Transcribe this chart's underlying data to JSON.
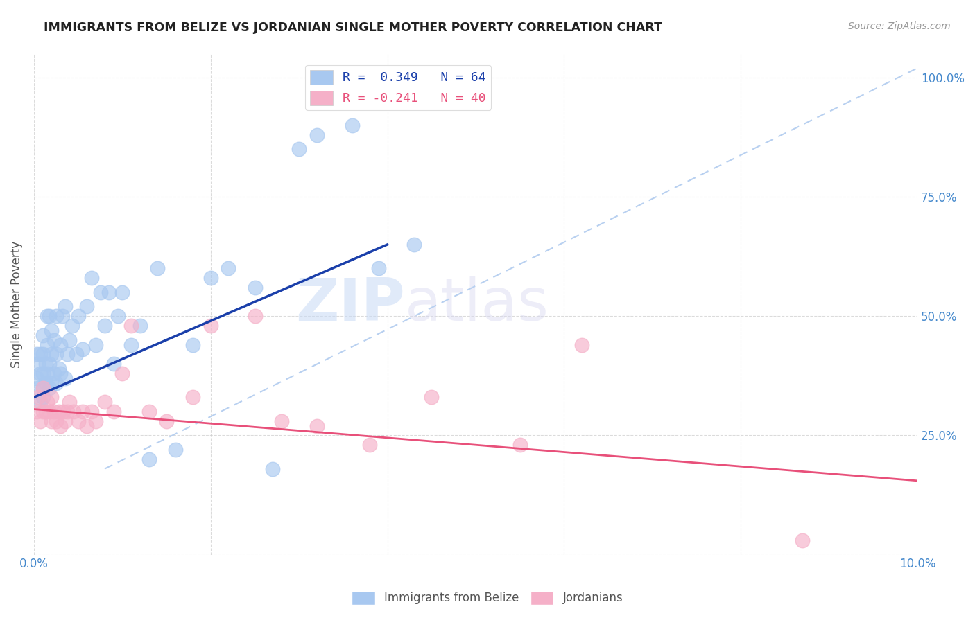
{
  "title": "IMMIGRANTS FROM BELIZE VS JORDANIAN SINGLE MOTHER POVERTY CORRELATION CHART",
  "source": "Source: ZipAtlas.com",
  "ylabel": "Single Mother Poverty",
  "xlim": [
    0.0,
    0.1
  ],
  "ylim": [
    0.0,
    1.05
  ],
  "x_tick_positions": [
    0.0,
    0.02,
    0.04,
    0.06,
    0.08,
    0.1
  ],
  "x_tick_labels": [
    "0.0%",
    "",
    "",
    "",
    "",
    "10.0%"
  ],
  "y_tick_positions": [
    0.0,
    0.25,
    0.5,
    0.75,
    1.0
  ],
  "y_tick_labels_right": [
    "",
    "25.0%",
    "50.0%",
    "75.0%",
    "100.0%"
  ],
  "blue_color": "#a8c8f0",
  "pink_color": "#f5b0c8",
  "blue_line_color": "#1a3faa",
  "pink_line_color": "#e8507a",
  "dashed_line_color": "#b8d0f0",
  "background_color": "#ffffff",
  "grid_color": "#cccccc",
  "title_color": "#222222",
  "axis_label_color": "#555555",
  "right_tick_color": "#4488cc",
  "watermark_color": "#dde8f8",
  "blue_line_x": [
    0.0,
    0.04
  ],
  "blue_line_y": [
    0.33,
    0.65
  ],
  "pink_line_x": [
    0.0,
    0.1
  ],
  "pink_line_y": [
    0.305,
    0.155
  ],
  "blue_points_x": [
    0.0003,
    0.0003,
    0.0005,
    0.0005,
    0.0007,
    0.0007,
    0.0007,
    0.001,
    0.001,
    0.001,
    0.001,
    0.001,
    0.0013,
    0.0013,
    0.0015,
    0.0015,
    0.0015,
    0.0017,
    0.0017,
    0.0017,
    0.002,
    0.002,
    0.002,
    0.0023,
    0.0023,
    0.0025,
    0.0025,
    0.0025,
    0.0028,
    0.003,
    0.003,
    0.0032,
    0.0035,
    0.0035,
    0.0038,
    0.004,
    0.0043,
    0.0048,
    0.005,
    0.0055,
    0.006,
    0.0065,
    0.007,
    0.0075,
    0.008,
    0.0085,
    0.009,
    0.0095,
    0.01,
    0.011,
    0.012,
    0.013,
    0.014,
    0.016,
    0.018,
    0.02,
    0.022,
    0.025,
    0.027,
    0.03,
    0.032,
    0.036,
    0.039,
    0.043
  ],
  "blue_points_y": [
    0.37,
    0.42,
    0.35,
    0.4,
    0.32,
    0.38,
    0.42,
    0.33,
    0.35,
    0.38,
    0.42,
    0.46,
    0.36,
    0.4,
    0.38,
    0.44,
    0.5,
    0.35,
    0.4,
    0.5,
    0.36,
    0.42,
    0.47,
    0.38,
    0.45,
    0.36,
    0.42,
    0.5,
    0.39,
    0.38,
    0.44,
    0.5,
    0.37,
    0.52,
    0.42,
    0.45,
    0.48,
    0.42,
    0.5,
    0.43,
    0.52,
    0.58,
    0.44,
    0.55,
    0.48,
    0.55,
    0.4,
    0.5,
    0.55,
    0.44,
    0.48,
    0.2,
    0.6,
    0.22,
    0.44,
    0.58,
    0.6,
    0.56,
    0.18,
    0.85,
    0.88,
    0.9,
    0.6,
    0.65
  ],
  "pink_points_x": [
    0.0003,
    0.0005,
    0.0007,
    0.001,
    0.001,
    0.0013,
    0.0015,
    0.0017,
    0.002,
    0.002,
    0.0023,
    0.0025,
    0.0028,
    0.003,
    0.0033,
    0.0035,
    0.0038,
    0.004,
    0.0045,
    0.005,
    0.0055,
    0.006,
    0.0065,
    0.007,
    0.008,
    0.009,
    0.01,
    0.011,
    0.013,
    0.015,
    0.018,
    0.02,
    0.025,
    0.028,
    0.032,
    0.038,
    0.045,
    0.055,
    0.062,
    0.087
  ],
  "pink_points_y": [
    0.3,
    0.33,
    0.28,
    0.3,
    0.35,
    0.3,
    0.32,
    0.3,
    0.28,
    0.33,
    0.3,
    0.28,
    0.3,
    0.27,
    0.3,
    0.28,
    0.3,
    0.32,
    0.3,
    0.28,
    0.3,
    0.27,
    0.3,
    0.28,
    0.32,
    0.3,
    0.38,
    0.48,
    0.3,
    0.28,
    0.33,
    0.48,
    0.5,
    0.28,
    0.27,
    0.23,
    0.33,
    0.23,
    0.44,
    0.03
  ]
}
